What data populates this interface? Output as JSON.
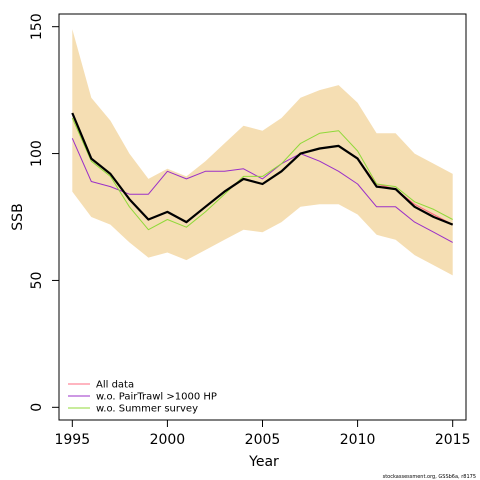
{
  "chart_data": {
    "type": "line",
    "xlabel": "Year",
    "ylabel": "SSB",
    "xlim": [
      1994.3,
      2015.7
    ],
    "ylim": [
      -5,
      155
    ],
    "x_ticks": [
      1995,
      2000,
      2005,
      2010,
      2015
    ],
    "y_ticks": [
      0,
      50,
      100,
      150
    ],
    "x": [
      1995,
      1996,
      1997,
      1998,
      1999,
      2000,
      2001,
      2002,
      2003,
      2004,
      2005,
      2006,
      2007,
      2008,
      2009,
      2010,
      2011,
      2012,
      2013,
      2014,
      2015
    ],
    "band": {
      "color": "#f5deb3",
      "upper": [
        149,
        122,
        113,
        100,
        90,
        94,
        91,
        97,
        104,
        111,
        109,
        114,
        122,
        125,
        127,
        120,
        108,
        108,
        100,
        96,
        92
      ],
      "lower": [
        85,
        75,
        72,
        65,
        59,
        61,
        58,
        62,
        66,
        70,
        69,
        73,
        79,
        80,
        80,
        76,
        68,
        66,
        60,
        56,
        52
      ]
    },
    "series": [
      {
        "name": "All data",
        "color": "#ff6b81",
        "width": 1,
        "values": [
          116,
          98,
          92,
          82,
          74,
          77,
          73,
          79,
          85,
          90,
          88,
          93,
          100,
          102,
          103,
          98,
          88,
          86,
          80,
          76,
          72
        ]
      },
      {
        "name": "w.o. PairTrawl >1000 HP",
        "color": "#9b30c8",
        "width": 1,
        "values": [
          106,
          89,
          87,
          84,
          84,
          93,
          90,
          93,
          93,
          94,
          90,
          96,
          100,
          97,
          93,
          88,
          79,
          79,
          73,
          69,
          65
        ]
      },
      {
        "name": "w.o. Summer survey",
        "color": "#90d93a",
        "width": 1,
        "values": [
          114,
          97,
          91,
          79,
          70,
          74,
          71,
          77,
          84,
          91,
          91,
          96,
          104,
          108,
          109,
          101,
          88,
          87,
          81,
          78,
          74
        ]
      },
      {
        "color": "#000000",
        "width": 2.2,
        "values": [
          116,
          98,
          92,
          82,
          74,
          77,
          73,
          79,
          85,
          90,
          88,
          93,
          100,
          102,
          103,
          98,
          87,
          86,
          79,
          75,
          72
        ]
      }
    ],
    "legend_position": "bottom-left"
  },
  "credit": "stockassessment.org, GSSb6a, r8175"
}
